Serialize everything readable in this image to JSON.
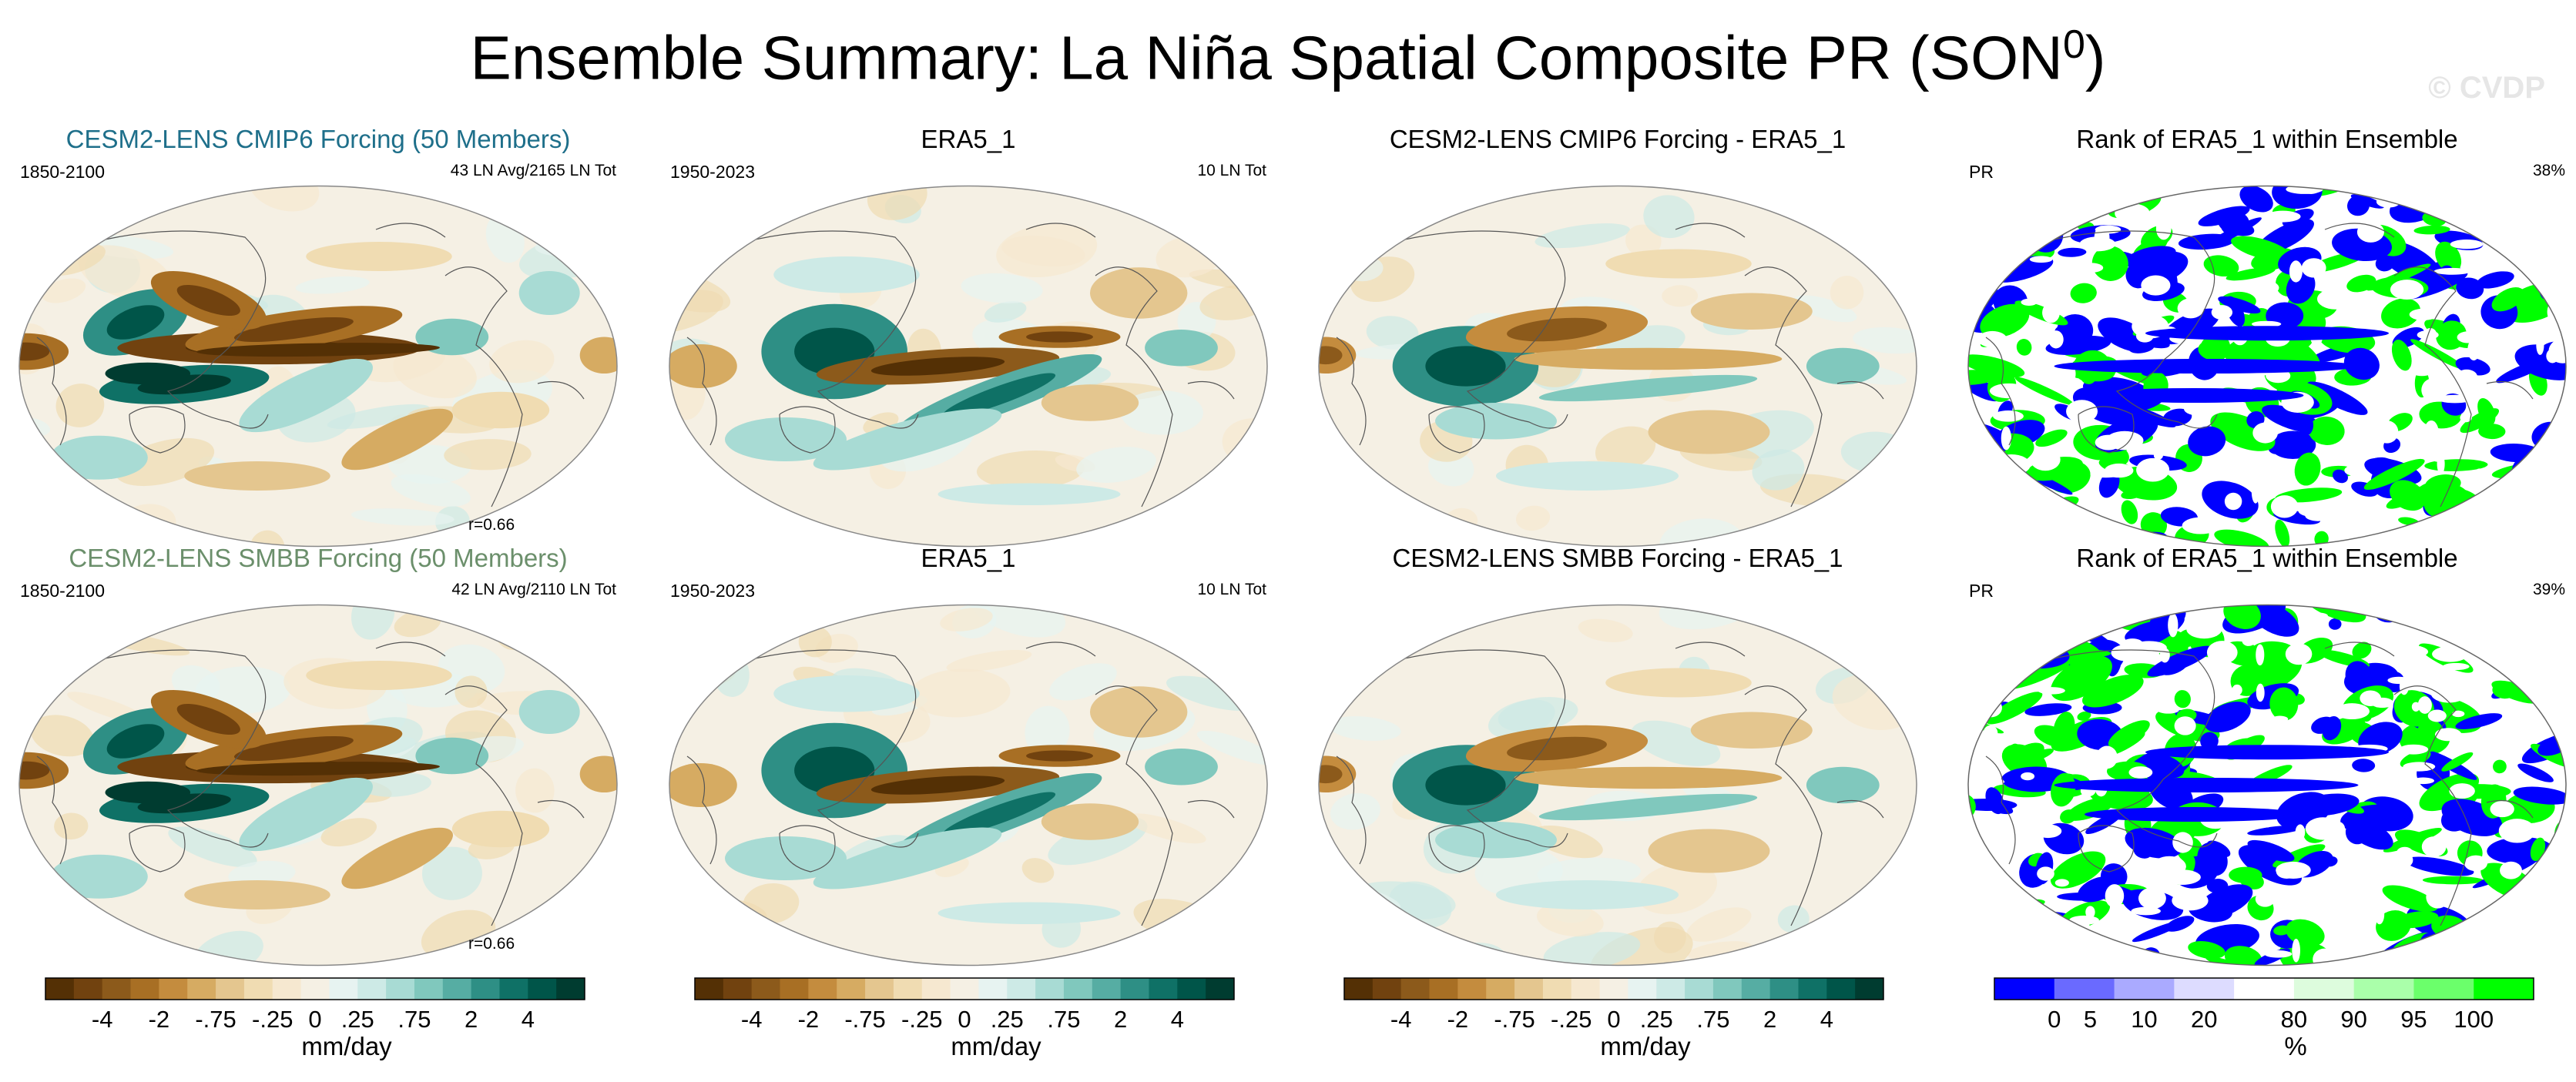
{
  "title": "Ensemble Summary: La Niña Spatial Composite PR (SON",
  "title_sup": "0",
  "title_close": ")",
  "watermark": "© CVDP",
  "colors": {
    "diverging": [
      "#543005",
      "#71420f",
      "#8c5a1b",
      "#a86f24",
      "#c48c3e",
      "#d6ab62",
      "#e4c68f",
      "#f0dcb2",
      "#f6e8d0",
      "#f5f0e4",
      "#e7f3f1",
      "#cdeae6",
      "#a8dbd4",
      "#80c8bd",
      "#56ada3",
      "#2e8f85",
      "#0f7166",
      "#005549",
      "#003c30"
    ],
    "rank": [
      "#0000ff",
      "#6a6aff",
      "#aaaaff",
      "#dddcff",
      "#ffffff",
      "#ddfcdd",
      "#aaffaa",
      "#6bff6b",
      "#00ff00"
    ]
  },
  "panels": [
    {
      "title": "CESM2-LENS CMIP6 Forcing (50 Members)",
      "title_color": "#1e6f8a",
      "left_text": "1850-2100",
      "right_text": "43 LN Avg/2165 LN Tot",
      "corr": "r=0.66",
      "kind": "model1"
    },
    {
      "title": "ERA5_1",
      "title_color": "#000000",
      "left_text": "1950-2023",
      "right_text": "10 LN Tot",
      "corr": "",
      "kind": "obs"
    },
    {
      "title": "CESM2-LENS CMIP6 Forcing - ERA5_1",
      "title_color": "#000000",
      "left_text": "",
      "right_text": "",
      "corr": "",
      "kind": "diff"
    },
    {
      "title": "Rank of ERA5_1 within Ensemble",
      "title_color": "#000000",
      "left_text": "PR",
      "right_text": "38%",
      "corr": "",
      "kind": "rank"
    },
    {
      "title": "CESM2-LENS SMBB Forcing (50 Members)",
      "title_color": "#6b8f6b",
      "left_text": "1850-2100",
      "right_text": "42 LN Avg/2110 LN Tot",
      "corr": "r=0.66",
      "kind": "model2"
    },
    {
      "title": "ERA5_1",
      "title_color": "#000000",
      "left_text": "1950-2023",
      "right_text": "10 LN Tot",
      "corr": "",
      "kind": "obs"
    },
    {
      "title": "CESM2-LENS SMBB Forcing - ERA5_1",
      "title_color": "#000000",
      "left_text": "",
      "right_text": "",
      "corr": "",
      "kind": "diff"
    },
    {
      "title": "Rank of ERA5_1 within Ensemble",
      "title_color": "#000000",
      "left_text": "PR",
      "right_text": "39%",
      "corr": "",
      "kind": "rank"
    }
  ],
  "colorbars": [
    {
      "ticks": [
        "-4",
        "-2",
        "-.75",
        "-.25",
        "0",
        ".25",
        ".75",
        "2",
        "4"
      ],
      "unit": "mm/day",
      "type": "diverging"
    },
    {
      "ticks": [
        "-4",
        "-2",
        "-.75",
        "-.25",
        "0",
        ".25",
        ".75",
        "2",
        "4"
      ],
      "unit": "mm/day",
      "type": "diverging"
    },
    {
      "ticks": [
        "-4",
        "-2",
        "-.75",
        "-.25",
        "0",
        ".25",
        ".75",
        "2",
        "4"
      ],
      "unit": "mm/day",
      "type": "diverging"
    },
    {
      "ticks": [
        "0",
        "5",
        "10",
        "20",
        "80",
        "90",
        "95",
        "100"
      ],
      "unit": "%",
      "type": "rank"
    }
  ],
  "chart_data": {
    "type": "heatmap",
    "title": "Ensemble Summary: La Niña Spatial Composite PR (SON0)",
    "projection": "robinson global maps, 2 rows x 4 columns",
    "diverging_levels_mm_per_day": [
      -4,
      -3,
      -2,
      -1,
      -0.75,
      -0.5,
      -0.25,
      -0.1,
      0,
      0.1,
      0.25,
      0.5,
      0.75,
      1,
      2,
      3,
      4
    ],
    "rank_levels_percent": [
      0,
      5,
      10,
      20,
      80,
      90,
      95,
      100
    ],
    "rank_percent_panels": [
      38,
      39
    ],
    "pattern_correlations": [
      0.66,
      0.66
    ]
  }
}
